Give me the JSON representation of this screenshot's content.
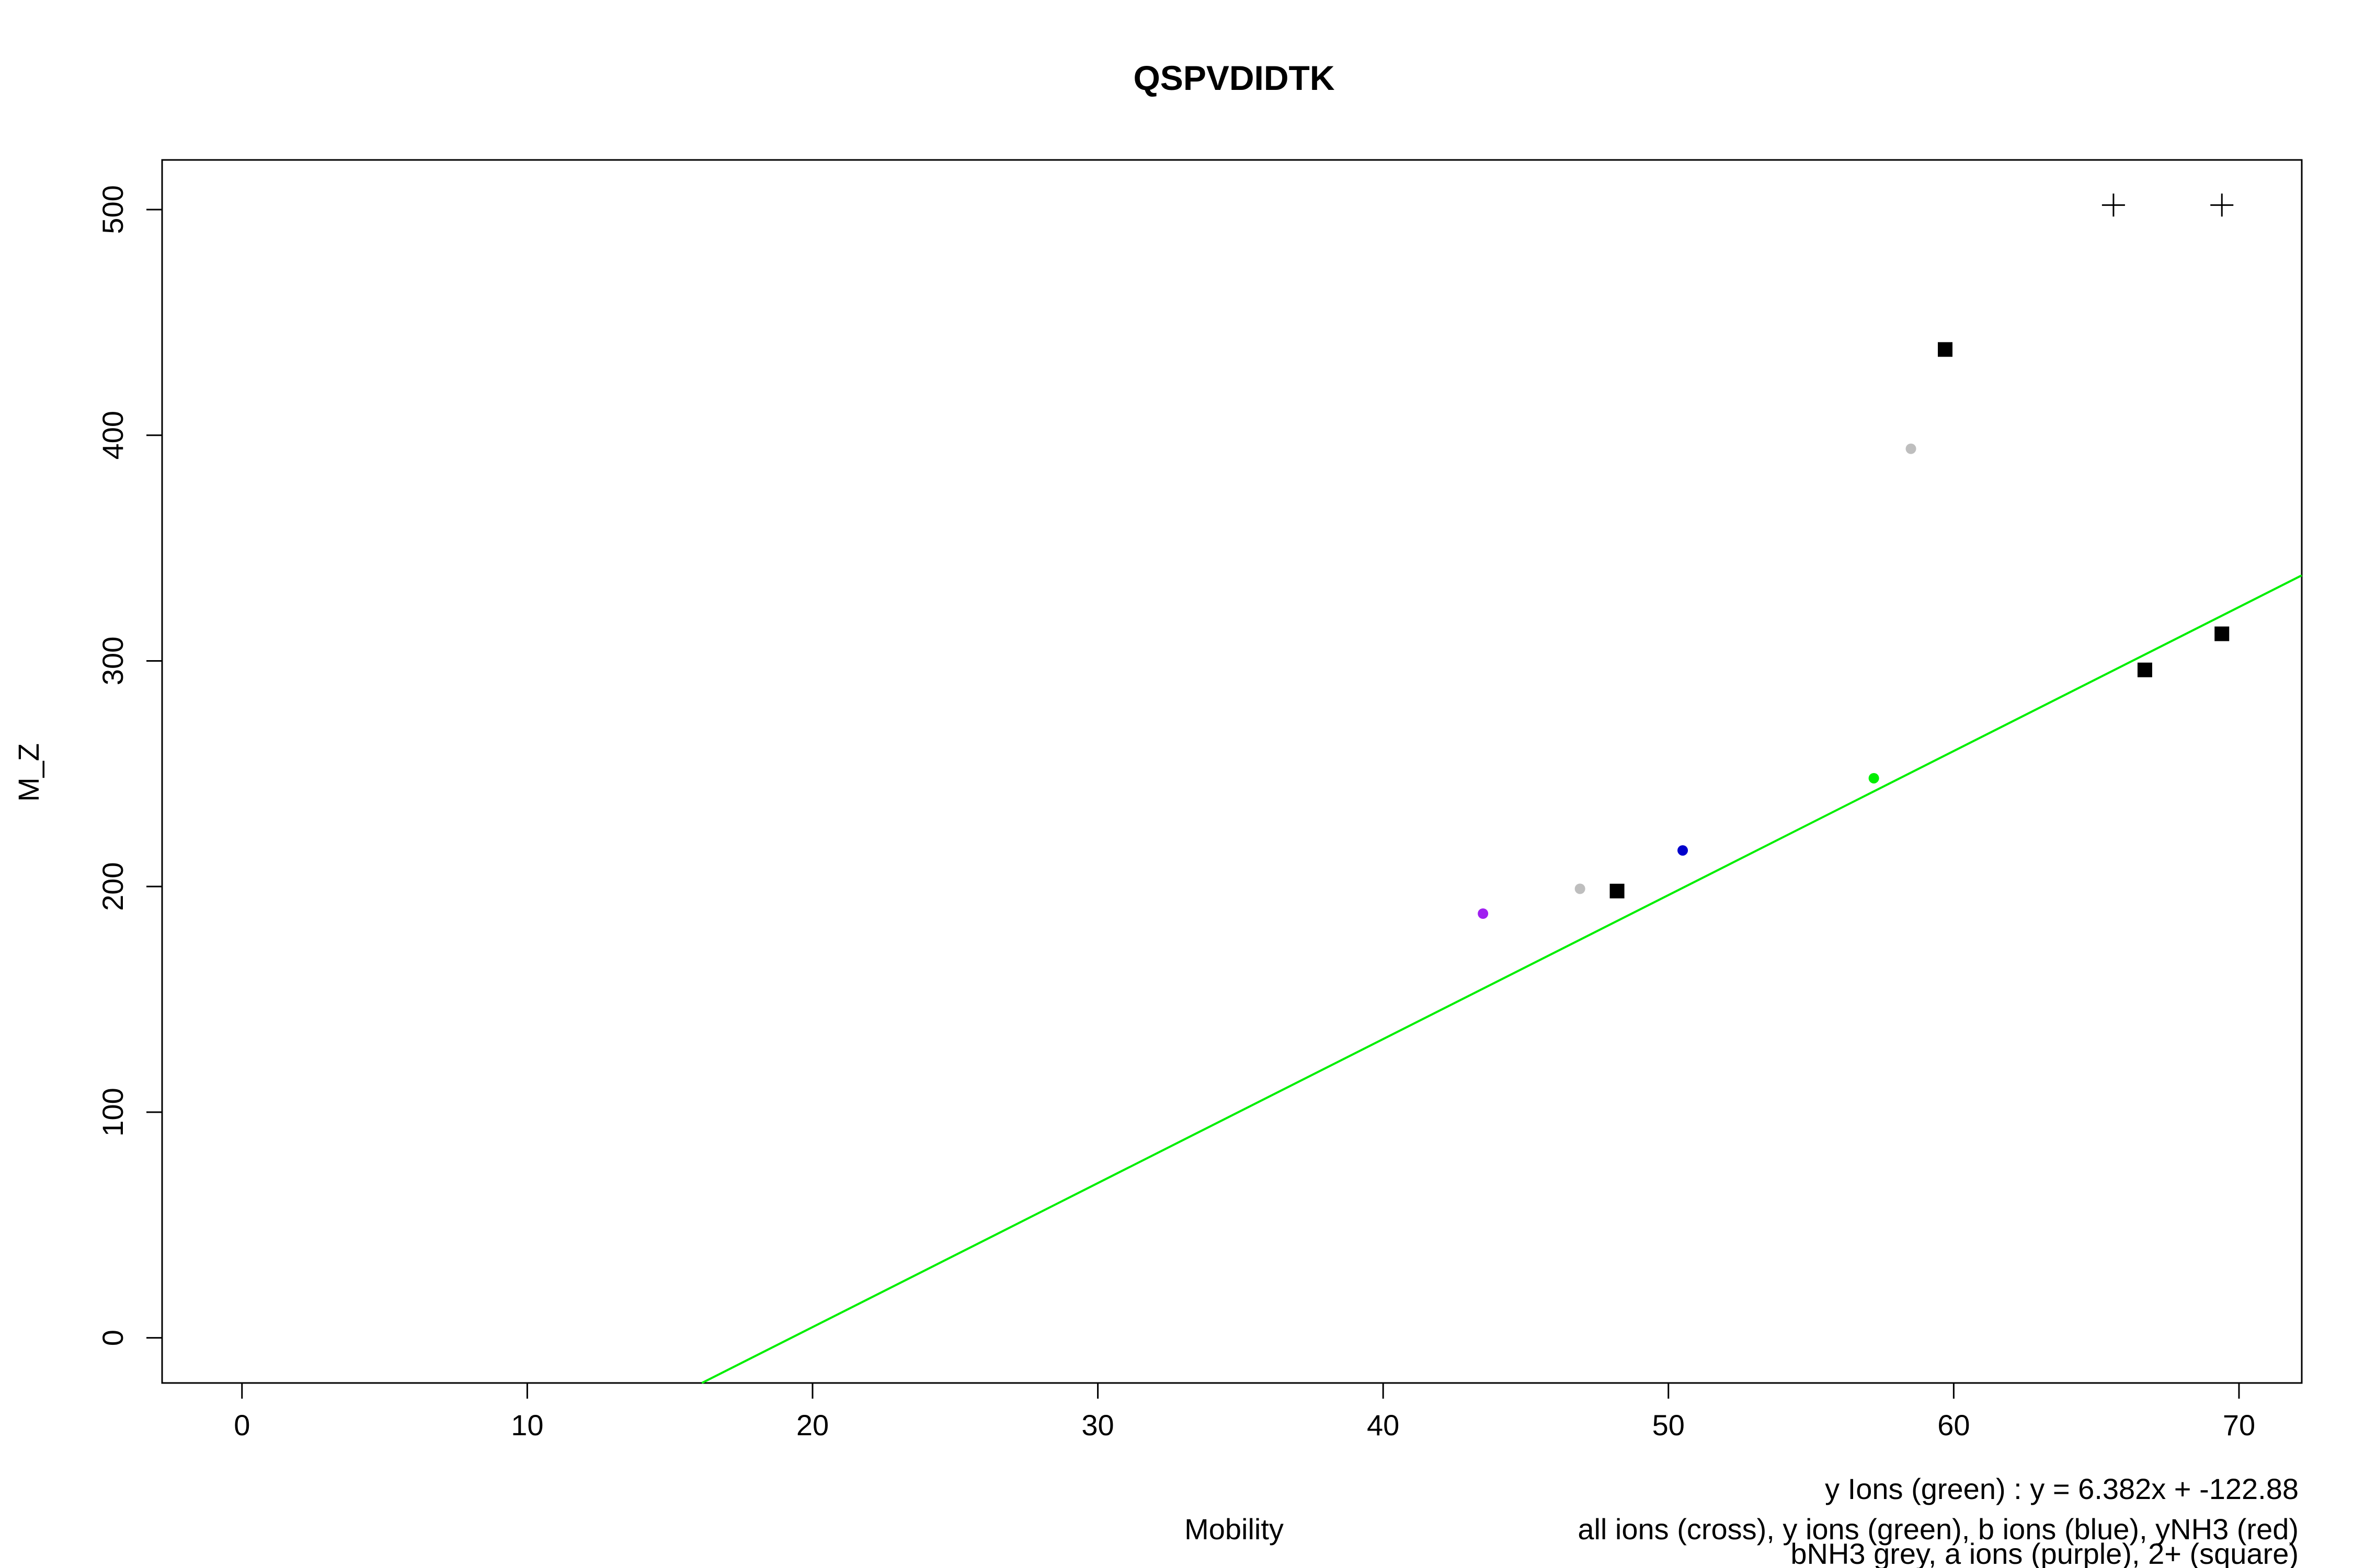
{
  "chart_data": {
    "type": "scatter",
    "title": "QSPVDIDTK",
    "xlabel": "Mobility",
    "ylabel": "M_Z",
    "xlim": [
      -2.8,
      72.2
    ],
    "ylim": [
      -20,
      522
    ],
    "x_ticks": [
      0,
      10,
      20,
      30,
      40,
      50,
      60,
      70
    ],
    "y_ticks": [
      0,
      100,
      200,
      300,
      400,
      500
    ],
    "grid": false,
    "colors": {
      "y_ions": "#00ee00",
      "b_ions": "#0000cc",
      "a_ions": "#a020f0",
      "bNH3": "#bebebe",
      "cross": "#000000",
      "square": "#000000",
      "fit_line": "#00ee00"
    },
    "series": [
      {
        "marker": "cross",
        "points": [
          [
            65.6,
            502
          ],
          [
            69.4,
            502
          ]
        ]
      },
      {
        "marker": "square",
        "points": [
          [
            48.2,
            198
          ],
          [
            59.7,
            438
          ],
          [
            66.7,
            296
          ],
          [
            69.4,
            312
          ]
        ]
      },
      {
        "marker": "dot",
        "color_key": "y_ions",
        "points": [
          [
            57.2,
            248
          ]
        ]
      },
      {
        "marker": "dot",
        "color_key": "b_ions",
        "points": [
          [
            50.5,
            216
          ]
        ]
      },
      {
        "marker": "dot",
        "color_key": "bNH3",
        "points": [
          [
            46.9,
            199
          ],
          [
            58.5,
            394
          ]
        ]
      },
      {
        "marker": "dot",
        "color_key": "a_ions",
        "points": [
          [
            43.5,
            188
          ]
        ]
      }
    ],
    "fit": {
      "slope": 6.382,
      "intercept": -122.88
    },
    "annotations": [
      "y Ions (green) : y = 6.382x + -122.88",
      "all ions (cross), y ions (green), b ions (blue), yNH3 (red)",
      "bNH3 grey, a ions (purple), 2+ (square)"
    ]
  }
}
